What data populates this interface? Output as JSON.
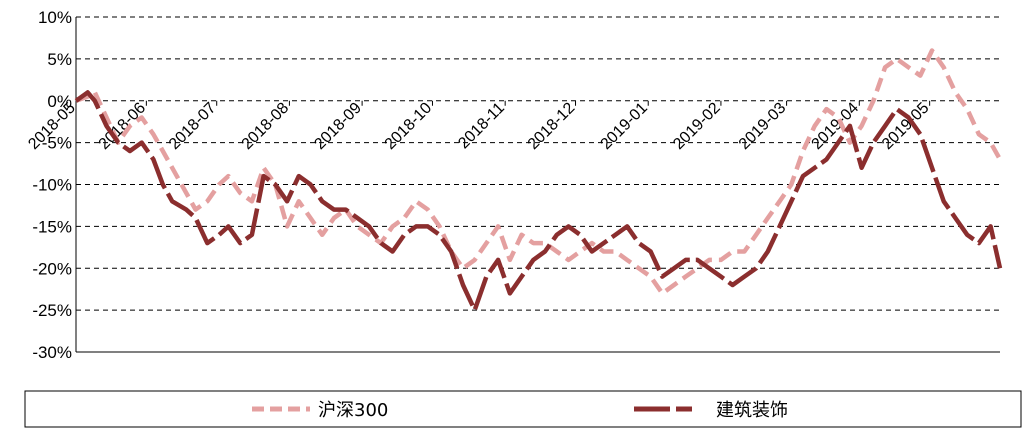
{
  "chart_data": {
    "type": "line",
    "title": "",
    "xlabel": "",
    "ylabel": "",
    "ylim": [
      -30,
      10
    ],
    "yticks": [
      10,
      5,
      0,
      -5,
      -10,
      -15,
      -20,
      -25,
      -30
    ],
    "ytick_labels": [
      "10%",
      "5%",
      "0%",
      "-5%",
      "-10%",
      "-15%",
      "-20%",
      "-25%",
      "-30%"
    ],
    "xlim": [
      "2018-05-02",
      "2019-05-31"
    ],
    "xticks": [
      "2018-05-02",
      "2018-06-01",
      "2018-07-01",
      "2018-08-01",
      "2018-09-01",
      "2018-10-01",
      "2018-11-01",
      "2018-12-01",
      "2019-01-01",
      "2019-02-01",
      "2019-03-01",
      "2019-04-01",
      "2019-05-01"
    ],
    "xtick_labels": [
      "2018-05",
      "2018-06",
      "2018-07",
      "2018-08",
      "2018-09",
      "2018-10",
      "2018-11",
      "2018-12",
      "2019-01",
      "2019-02",
      "2019-03",
      "2019-04",
      "2019-05"
    ],
    "grid": "horizontal dashed",
    "legend_position": "bottom",
    "series": [
      {
        "name": "沪深300",
        "color": "#e4a0a0",
        "style": "dashed",
        "x": [
          "2018-05-02",
          "2018-05-07",
          "2018-05-10",
          "2018-05-15",
          "2018-05-20",
          "2018-05-25",
          "2018-05-30",
          "2018-06-04",
          "2018-06-08",
          "2018-06-12",
          "2018-06-18",
          "2018-06-22",
          "2018-06-27",
          "2018-07-02",
          "2018-07-06",
          "2018-07-11",
          "2018-07-16",
          "2018-07-21",
          "2018-07-26",
          "2018-07-31",
          "2018-08-05",
          "2018-08-10",
          "2018-08-15",
          "2018-08-20",
          "2018-08-25",
          "2018-08-30",
          "2018-09-04",
          "2018-09-09",
          "2018-09-14",
          "2018-09-19",
          "2018-09-24",
          "2018-09-29",
          "2018-10-04",
          "2018-10-09",
          "2018-10-14",
          "2018-10-19",
          "2018-10-24",
          "2018-10-29",
          "2018-11-03",
          "2018-11-08",
          "2018-11-13",
          "2018-11-18",
          "2018-11-23",
          "2018-11-28",
          "2018-12-03",
          "2018-12-08",
          "2018-12-13",
          "2018-12-18",
          "2018-12-23",
          "2018-12-28",
          "2019-01-02",
          "2019-01-07",
          "2019-01-12",
          "2019-01-17",
          "2019-01-22",
          "2019-01-27",
          "2019-02-01",
          "2019-02-06",
          "2019-02-11",
          "2019-02-16",
          "2019-02-21",
          "2019-02-26",
          "2019-03-03",
          "2019-03-08",
          "2019-03-13",
          "2019-03-18",
          "2019-03-23",
          "2019-03-28",
          "2019-04-02",
          "2019-04-07",
          "2019-04-12",
          "2019-04-17",
          "2019-04-22",
          "2019-04-27",
          "2019-05-02",
          "2019-05-07",
          "2019-05-12",
          "2019-05-17",
          "2019-05-22",
          "2019-05-27",
          "2019-05-31"
        ],
        "values": [
          0,
          0.5,
          1,
          -2,
          -5,
          -3,
          -2,
          -4,
          -6,
          -8,
          -11,
          -13,
          -12,
          -10,
          -9,
          -11,
          -12,
          -8,
          -10,
          -15,
          -12,
          -14,
          -16,
          -14,
          -13,
          -15,
          -16,
          -17,
          -15,
          -14,
          -12,
          -13,
          -15,
          -18,
          -20,
          -19,
          -17,
          -15,
          -19,
          -16,
          -17,
          -17,
          -18,
          -19,
          -18,
          -17,
          -18,
          -18,
          -19,
          -20,
          -21,
          -23,
          -22,
          -21,
          -20,
          -19,
          -19,
          -18,
          -18,
          -16,
          -14,
          -12,
          -10,
          -6,
          -3,
          -1,
          -2,
          -5,
          -3,
          0,
          4,
          5,
          4,
          3,
          6,
          4,
          1,
          -1,
          -4,
          -5,
          -7
        ]
      },
      {
        "name": "建筑装饰",
        "color": "#8b2e2e",
        "style": "dashed",
        "x": [
          "2018-05-02",
          "2018-05-07",
          "2018-05-10",
          "2018-05-15",
          "2018-05-20",
          "2018-05-25",
          "2018-05-30",
          "2018-06-04",
          "2018-06-08",
          "2018-06-12",
          "2018-06-18",
          "2018-06-22",
          "2018-06-27",
          "2018-07-02",
          "2018-07-06",
          "2018-07-11",
          "2018-07-16",
          "2018-07-21",
          "2018-07-26",
          "2018-07-31",
          "2018-08-05",
          "2018-08-10",
          "2018-08-15",
          "2018-08-20",
          "2018-08-25",
          "2018-08-30",
          "2018-09-04",
          "2018-09-09",
          "2018-09-14",
          "2018-09-19",
          "2018-09-24",
          "2018-09-29",
          "2018-10-04",
          "2018-10-09",
          "2018-10-14",
          "2018-10-19",
          "2018-10-24",
          "2018-10-29",
          "2018-11-03",
          "2018-11-08",
          "2018-11-13",
          "2018-11-18",
          "2018-11-23",
          "2018-11-28",
          "2018-12-03",
          "2018-12-08",
          "2018-12-13",
          "2018-12-18",
          "2018-12-23",
          "2018-12-28",
          "2019-01-02",
          "2019-01-07",
          "2019-01-12",
          "2019-01-17",
          "2019-01-22",
          "2019-01-27",
          "2019-02-01",
          "2019-02-06",
          "2019-02-11",
          "2019-02-16",
          "2019-02-21",
          "2019-02-26",
          "2019-03-03",
          "2019-03-08",
          "2019-03-13",
          "2019-03-18",
          "2019-03-23",
          "2019-03-28",
          "2019-04-02",
          "2019-04-07",
          "2019-04-12",
          "2019-04-17",
          "2019-04-22",
          "2019-04-27",
          "2019-05-02",
          "2019-05-07",
          "2019-05-12",
          "2019-05-17",
          "2019-05-22",
          "2019-05-27",
          "2019-05-31"
        ],
        "values": [
          0,
          1,
          0,
          -3,
          -5,
          -6,
          -5,
          -7,
          -10,
          -12,
          -13,
          -14,
          -17,
          -16,
          -15,
          -17,
          -16,
          -9,
          -10,
          -12,
          -9,
          -10,
          -12,
          -13,
          -13,
          -14,
          -15,
          -17,
          -18,
          -16,
          -15,
          -15,
          -16,
          -18,
          -22,
          -25,
          -21,
          -19,
          -23,
          -21,
          -19,
          -18,
          -16,
          -15,
          -16,
          -18,
          -17,
          -16,
          -15,
          -17,
          -18,
          -21,
          -20,
          -19,
          -19,
          -20,
          -21,
          -22,
          -21,
          -20,
          -18,
          -15,
          -12,
          -9,
          -8,
          -7,
          -5,
          -3,
          -8,
          -5,
          -3,
          -1,
          -2,
          -4,
          -8,
          -12,
          -14,
          -16,
          -17,
          -15,
          -20
        ]
      }
    ]
  },
  "legend": {
    "items": [
      {
        "label": "沪深300",
        "color": "#e4a0a0"
      },
      {
        "label": "建筑装饰",
        "color": "#8b2e2e"
      }
    ]
  }
}
